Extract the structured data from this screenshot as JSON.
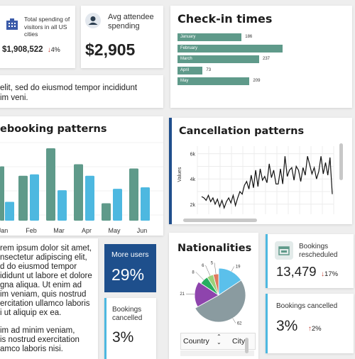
{
  "kpi_total": {
    "label": "Total spending of visitors in all US cities",
    "value": "$1,908,522",
    "change": "4%",
    "change_dir": "down"
  },
  "kpi_avg": {
    "label": "Avg attendee spending",
    "value": "$2,905"
  },
  "lorem_top": {
    "line1": "elit, sed do eiusmod tempor incididunt",
    "line2": "im veni."
  },
  "checkin": {
    "title": "Check-in times",
    "chart_data": {
      "type": "bar",
      "orientation": "horizontal",
      "categories": [
        "January",
        "February",
        "March",
        "April",
        "May"
      ],
      "values": [
        186,
        305,
        237,
        73,
        209
      ],
      "value_labels": [
        "186",
        "",
        "237",
        "73",
        "209"
      ],
      "color": "#5f9a8a"
    }
  },
  "prebooking": {
    "title": "ebooking patterns",
    "chart_data": {
      "type": "bar",
      "categories": [
        "Jan",
        "Feb",
        "Mar",
        "Apr",
        "May",
        "Jun"
      ],
      "series": [
        {
          "color": "#5f9a8a",
          "values": [
            62,
            100,
            78,
            24,
            70,
            72
          ]
        },
        {
          "color": "#4db8e0",
          "values": [
            26,
            64,
            42,
            62,
            44,
            46
          ]
        }
      ],
      "first_partial_values": [
        0.75,
        0.26
      ]
    }
  },
  "cancellation": {
    "title": "Cancellation patterns",
    "chart_data": {
      "type": "line",
      "ylabel": "Values",
      "y_ticks": [
        "6k",
        "4k",
        "2k"
      ],
      "ylim": [
        1200,
        6600
      ],
      "color": "#111111",
      "values": [
        2600,
        2500,
        2300,
        2700,
        2200,
        2500,
        2000,
        2400,
        1800,
        2300,
        1700,
        2200,
        2500,
        2100,
        2700,
        1900,
        2500,
        3000,
        2800,
        3500,
        3800,
        3200,
        4300,
        3300,
        4700,
        3400,
        4800,
        3900,
        4200,
        3700,
        5200,
        4100,
        4700,
        3600,
        3600,
        4800,
        3600,
        5800,
        4200,
        4700,
        4900,
        3900,
        5000,
        4700,
        3800,
        4900,
        4300,
        5800,
        5100,
        4400,
        4900,
        4000,
        4600,
        5800,
        4400,
        5300,
        4300,
        5700,
        2800
      ]
    }
  },
  "lorem_mid": {
    "lines": [
      "rem ipsum dolor sit amet,",
      "nsectetur adipiscing elit,",
      "d do eiusmod tempor",
      "ididunt ut labore et dolore",
      "gna aliqua. Ut enim ad",
      "im veniam, quis nostrud",
      "ercitation ullamco laboris",
      "i ut aliquip ex ea."
    ],
    "lines2": [
      "im ad minim veniam,",
      "is nostrud exercitation",
      "amco laboris nisi."
    ]
  },
  "more_users": {
    "label": "More users",
    "value": "29%"
  },
  "bookings_cancelled_mid": {
    "label": "Bookings cancelled",
    "value": "3%"
  },
  "nationalities": {
    "title": "Nationalities",
    "chart_data": {
      "type": "pie",
      "values": [
        19,
        62,
        21,
        8,
        6,
        5
      ],
      "labels": [
        "19",
        "62",
        "21",
        "8",
        "6",
        "5"
      ],
      "colors": [
        "#5bc0eb",
        "#8a9ba0",
        "#8e44ad",
        "#27ae60",
        "#9bd17a",
        "#e07a5f"
      ]
    },
    "table_headers": [
      "Country",
      "City"
    ]
  },
  "rescheduled": {
    "label": "Bookings rescheduled",
    "value": "13,479",
    "change": "17%",
    "change_dir": "down"
  },
  "bookings_cancelled_right": {
    "label": "Bookings cancelled",
    "value": "3%",
    "change": "2%",
    "change_dir": "up"
  }
}
